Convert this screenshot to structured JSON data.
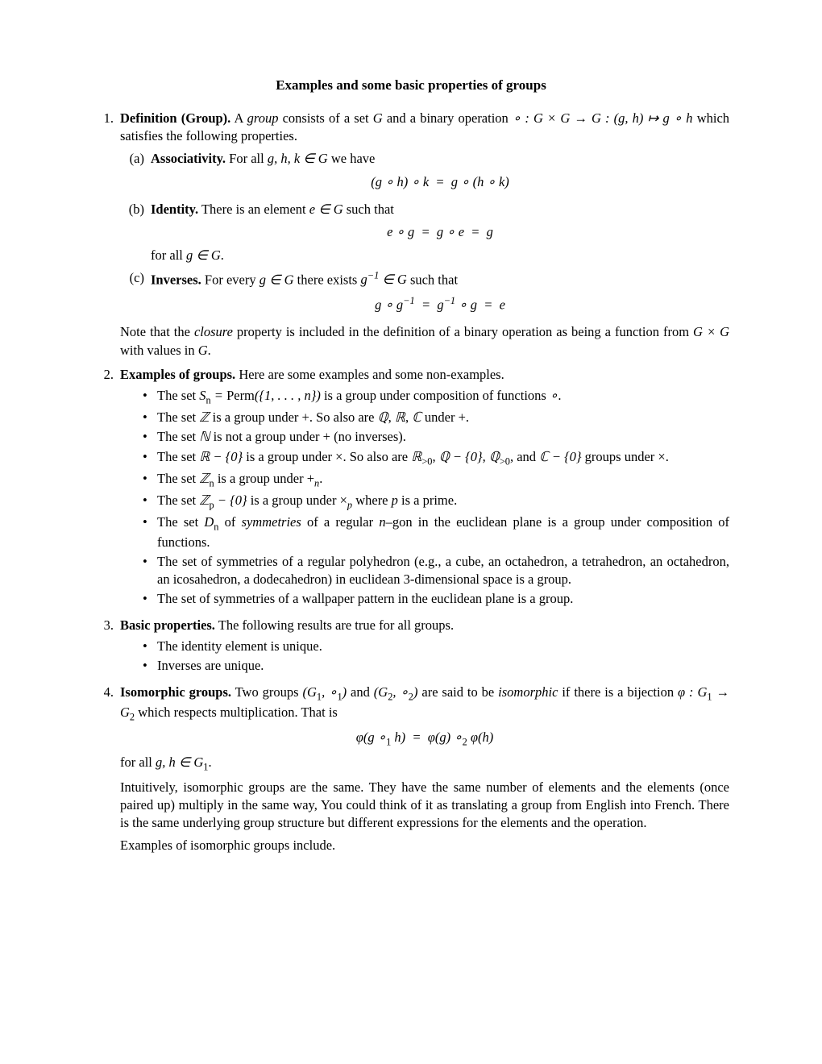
{
  "title": "Examples and some basic properties of groups",
  "items": [
    {
      "num": "1.",
      "lead_bold": "Definition (Group).",
      "lead_rest_html": " A <span class='it'>group</span> consists of a set <span class='math'>G</span> and a binary operation <span class='math'>∘ : G × G → G : (g, h) ↦ g ∘ h</span> which satisfies the following properties.",
      "subitems": [
        {
          "num": "(a)",
          "bold": "Associativity.",
          "rest_html": " For all <span class='math'>g, h, k ∈ G</span> we have",
          "display": "(g ∘ h) ∘ k &nbsp;=&nbsp; g ∘ (h ∘ k)"
        },
        {
          "num": "(b)",
          "bold": "Identity.",
          "rest_html": " There is an element <span class='math'>e ∈ G</span> such that",
          "display": "e ∘ g &nbsp;=&nbsp; g ∘ e &nbsp;=&nbsp; g",
          "after_html": "for all <span class='math'>g ∈ G</span>."
        },
        {
          "num": "(c)",
          "bold": "Inverses.",
          "rest_html": " For every <span class='math'>g ∈ G</span> there exists <span class='math'>g<sup>−1</sup> ∈ G</span> such that",
          "display": "g ∘ g<sup>−1</sup> &nbsp;=&nbsp; g<sup>−1</sup> ∘ g &nbsp;=&nbsp; e"
        }
      ],
      "trailing_para_html": "Note that the <span class='it'>closure</span> property is included in the definition of a binary operation as being a function from <span class='math'>G × G</span> with values in <span class='math'>G</span>."
    },
    {
      "num": "2.",
      "lead_bold": "Examples of groups.",
      "lead_rest_html": " Here are some examples and some non-examples.",
      "bullets": [
        "The set <span class='math'>S<sub>n</sub> = <span class='rm'>Perm</span>({1, . . . , n})</span> is a group under composition of functions <span class='math'>∘</span>.",
        "The set <span class='math'>ℤ</span> is a group under +. So also are <span class='math'>ℚ</span>, <span class='math'>ℝ</span>, <span class='math'>ℂ</span> under +.",
        "The set <span class='math'>ℕ</span> is not a group under + (no inverses).",
        "The set <span class='math'>ℝ − {0}</span> is a group under ×. So also are <span class='math'>ℝ<sub>&gt;0</sub></span>, <span class='math'>ℚ − {0}</span>, <span class='math'>ℚ<sub>&gt;0</sub></span>, and <span class='math'>ℂ − {0}</span> groups under ×.",
        "The set <span class='math'>ℤ<sub>n</sub></span> is a group under +<sub><span class='math'>n</span></sub>.",
        "The set <span class='math'>ℤ<sub>p</sub> − {0}</span> is a group under ×<sub><span class='math'>p</span></sub> where <span class='math'>p</span> is a prime.",
        "The set <span class='math'>D<sub>n</sub></span> of <span class='it'>symmetries</span> of a regular <span class='math'>n</span>–gon in the euclidean plane is a group under composition of functions.",
        "The set of symmetries of a regular polyhedron (e.g., a cube, an octahedron, a tetrahedron, an octahedron, an icosahedron, a dodecahedron) in euclidean 3-dimensional space is a group.",
        "The set of symmetries of a wallpaper pattern in the euclidean plane is a group."
      ]
    },
    {
      "num": "3.",
      "lead_bold": "Basic properties.",
      "lead_rest_html": " The following results are true for all groups.",
      "bullets": [
        "The identity element is unique.",
        "Inverses are unique."
      ]
    },
    {
      "num": "4.",
      "lead_bold": "Isomorphic groups.",
      "lead_rest_html": " Two groups <span class='math'>(G<sub>1</sub>, ∘<sub>1</sub>)</span> and <span class='math'>(G<sub>2</sub>, ∘<sub>2</sub>)</span> are said to be <span class='it'>isomorphic</span> if there is a bijection <span class='math'>φ : G<sub>1</sub> → G<sub>2</sub></span> which respects multiplication. That is",
      "display": "φ(g ∘<sub>1</sub> h) &nbsp;=&nbsp; φ(g) ∘<sub>2</sub> φ(h)",
      "after_display_html": "for all <span class='math'>g, h ∈ G<sub>1</sub></span>.",
      "paras_html": [
        "Intuitively, isomorphic groups are the same. They have the same number of elements and the elements (once paired up) multiply in the same way, You could think of it as translating a group from English into French. There is the same underlying group structure but different expressions for the elements and the operation.",
        "Examples of isomorphic groups include."
      ]
    }
  ]
}
